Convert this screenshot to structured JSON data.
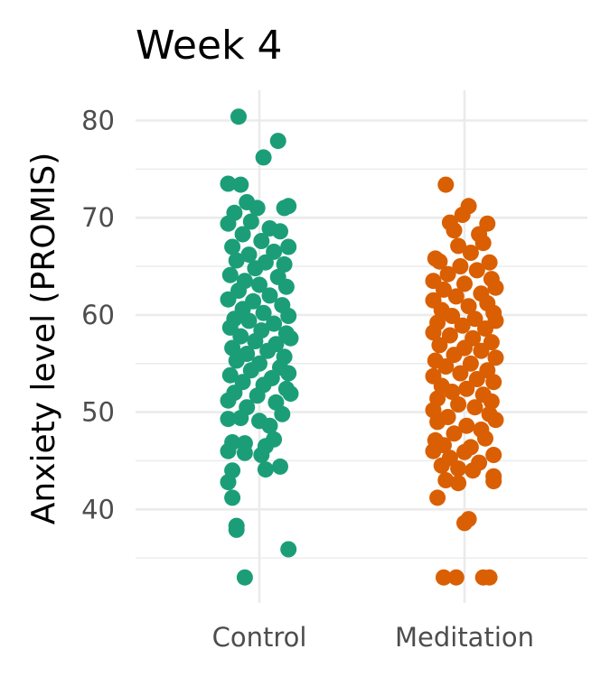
{
  "chart_data": {
    "type": "scatter",
    "subtype": "jittered strip plot",
    "title": "Week 4",
    "xlabel": "",
    "ylabel": "Anxiety level (PROMIS)",
    "categories": [
      "Control",
      "Meditation"
    ],
    "yticks": [
      40,
      50,
      60,
      70,
      80
    ],
    "ylim": [
      32.5,
      82
    ],
    "grid": true,
    "legend": "none",
    "series": [
      {
        "category": "Control",
        "color": "#1b9e77",
        "points": [
          {
            "x": -0.1,
            "y": 80.4
          },
          {
            "x": 0.09,
            "y": 77.9
          },
          {
            "x": 0.02,
            "y": 76.2
          },
          {
            "x": -0.15,
            "y": 73.5
          },
          {
            "x": -0.09,
            "y": 73.4
          },
          {
            "x": -0.06,
            "y": 71.6
          },
          {
            "x": 0.14,
            "y": 71.2
          },
          {
            "x": 0.12,
            "y": 71.0
          },
          {
            "x": -0.01,
            "y": 71.0
          },
          {
            "x": -0.12,
            "y": 70.5
          },
          {
            "x": -0.15,
            "y": 69.4
          },
          {
            "x": -0.04,
            "y": 69.6
          },
          {
            "x": 0.05,
            "y": 68.9
          },
          {
            "x": 0.1,
            "y": 68.6
          },
          {
            "x": -0.08,
            "y": 68.3
          },
          {
            "x": 0.01,
            "y": 67.6
          },
          {
            "x": -0.13,
            "y": 67.0
          },
          {
            "x": 0.14,
            "y": 67.0
          },
          {
            "x": 0.07,
            "y": 66.5
          },
          {
            "x": -0.05,
            "y": 66.2
          },
          {
            "x": -0.11,
            "y": 65.6
          },
          {
            "x": 0.03,
            "y": 65.4
          },
          {
            "x": 0.12,
            "y": 65.2
          },
          {
            "x": -0.02,
            "y": 64.8
          },
          {
            "x": -0.14,
            "y": 64.1
          },
          {
            "x": 0.09,
            "y": 63.9
          },
          {
            "x": -0.07,
            "y": 63.5
          },
          {
            "x": 0.0,
            "y": 63.1
          },
          {
            "x": 0.13,
            "y": 62.9
          },
          {
            "x": -0.1,
            "y": 62.5
          },
          {
            "x": 0.05,
            "y": 62.0
          },
          {
            "x": -0.15,
            "y": 61.6
          },
          {
            "x": -0.03,
            "y": 61.4
          },
          {
            "x": 0.11,
            "y": 61.0
          },
          {
            "x": -0.08,
            "y": 60.6
          },
          {
            "x": 0.02,
            "y": 60.2
          },
          {
            "x": 0.14,
            "y": 59.9
          },
          {
            "x": -0.12,
            "y": 59.6
          },
          {
            "x": -0.05,
            "y": 59.4
          },
          {
            "x": 0.07,
            "y": 59.1
          },
          {
            "x": -0.14,
            "y": 58.7
          },
          {
            "x": 0.01,
            "y": 58.4
          },
          {
            "x": 0.13,
            "y": 58.1
          },
          {
            "x": -0.09,
            "y": 57.8
          },
          {
            "x": 0.15,
            "y": 57.6
          },
          {
            "x": -0.02,
            "y": 57.3
          },
          {
            "x": 0.08,
            "y": 57.0
          },
          {
            "x": -0.13,
            "y": 56.6
          },
          {
            "x": 0.04,
            "y": 56.3
          },
          {
            "x": -0.06,
            "y": 56.0
          },
          {
            "x": 0.12,
            "y": 55.7
          },
          {
            "x": -0.11,
            "y": 55.3
          },
          {
            "x": 0.0,
            "y": 55.0
          },
          {
            "x": 0.1,
            "y": 54.6
          },
          {
            "x": -0.04,
            "y": 54.3
          },
          {
            "x": 0.14,
            "y": 54.0
          },
          {
            "x": -0.14,
            "y": 53.8
          },
          {
            "x": 0.06,
            "y": 53.5
          },
          {
            "x": -0.08,
            "y": 53.1
          },
          {
            "x": 0.02,
            "y": 52.8
          },
          {
            "x": 0.13,
            "y": 52.4
          },
          {
            "x": -0.12,
            "y": 52.0
          },
          {
            "x": -0.01,
            "y": 51.7
          },
          {
            "x": 0.15,
            "y": 51.9
          },
          {
            "x": -0.15,
            "y": 51.2
          },
          {
            "x": 0.08,
            "y": 51.0
          },
          {
            "x": -0.06,
            "y": 50.5
          },
          {
            "x": 0.11,
            "y": 49.8
          },
          {
            "x": -0.15,
            "y": 49.3
          },
          {
            "x": -0.09,
            "y": 49.4
          },
          {
            "x": 0.0,
            "y": 49.1
          },
          {
            "x": 0.05,
            "y": 48.6
          },
          {
            "x": 0.07,
            "y": 47.2
          },
          {
            "x": -0.13,
            "y": 46.9
          },
          {
            "x": -0.07,
            "y": 46.8
          },
          {
            "x": 0.03,
            "y": 46.5
          },
          {
            "x": -0.15,
            "y": 46.0
          },
          {
            "x": -0.07,
            "y": 45.8
          },
          {
            "x": 0.01,
            "y": 45.6
          },
          {
            "x": 0.1,
            "y": 44.4
          },
          {
            "x": 0.03,
            "y": 44.1
          },
          {
            "x": -0.13,
            "y": 44.0
          },
          {
            "x": -0.15,
            "y": 42.8
          },
          {
            "x": -0.13,
            "y": 41.2
          },
          {
            "x": -0.11,
            "y": 38.3
          },
          {
            "x": -0.11,
            "y": 37.9
          },
          {
            "x": 0.14,
            "y": 35.9
          },
          {
            "x": -0.07,
            "y": 33.0
          }
        ]
      },
      {
        "category": "Meditation",
        "color": "#d95f02",
        "points": [
          {
            "x": -0.09,
            "y": 73.4
          },
          {
            "x": 0.02,
            "y": 71.2
          },
          {
            "x": -0.01,
            "y": 70.3
          },
          {
            "x": -0.07,
            "y": 69.5
          },
          {
            "x": 0.11,
            "y": 69.4
          },
          {
            "x": -0.05,
            "y": 68.7
          },
          {
            "x": 0.07,
            "y": 68.3
          },
          {
            "x": 0.09,
            "y": 67.4
          },
          {
            "x": -0.03,
            "y": 67.1
          },
          {
            "x": 0.03,
            "y": 66.4
          },
          {
            "x": -0.14,
            "y": 65.8
          },
          {
            "x": -0.12,
            "y": 65.5
          },
          {
            "x": 0.12,
            "y": 65.4
          },
          {
            "x": -0.02,
            "y": 65.0
          },
          {
            "x": 0.06,
            "y": 64.6
          },
          {
            "x": -0.08,
            "y": 64.2
          },
          {
            "x": 0.13,
            "y": 63.7
          },
          {
            "x": -0.15,
            "y": 63.5
          },
          {
            "x": 0.0,
            "y": 63.2
          },
          {
            "x": 0.15,
            "y": 62.8
          },
          {
            "x": -0.1,
            "y": 62.6
          },
          {
            "x": 0.08,
            "y": 62.2
          },
          {
            "x": -0.04,
            "y": 61.9
          },
          {
            "x": -0.15,
            "y": 61.5
          },
          {
            "x": 0.11,
            "y": 61.2
          },
          {
            "x": 0.02,
            "y": 60.9
          },
          {
            "x": -0.11,
            "y": 60.5
          },
          {
            "x": 0.14,
            "y": 60.2
          },
          {
            "x": -0.06,
            "y": 59.9
          },
          {
            "x": 0.05,
            "y": 59.6
          },
          {
            "x": -0.13,
            "y": 59.2
          },
          {
            "x": 0.15,
            "y": 59.4
          },
          {
            "x": -0.01,
            "y": 58.9
          },
          {
            "x": 0.1,
            "y": 58.6
          },
          {
            "x": -0.15,
            "y": 58.2
          },
          {
            "x": -0.07,
            "y": 57.9
          },
          {
            "x": 0.04,
            "y": 57.6
          },
          {
            "x": 0.13,
            "y": 57.2
          },
          {
            "x": -0.12,
            "y": 56.9
          },
          {
            "x": 0.0,
            "y": 56.6
          },
          {
            "x": 0.08,
            "y": 56.3
          },
          {
            "x": -0.05,
            "y": 55.9
          },
          {
            "x": 0.15,
            "y": 55.6
          },
          {
            "x": -0.14,
            "y": 55.3
          },
          {
            "x": 0.03,
            "y": 55.0
          },
          {
            "x": -0.09,
            "y": 54.7
          },
          {
            "x": 0.11,
            "y": 54.3
          },
          {
            "x": -0.02,
            "y": 54.0
          },
          {
            "x": -0.15,
            "y": 53.7
          },
          {
            "x": 0.06,
            "y": 53.4
          },
          {
            "x": 0.14,
            "y": 53.1
          },
          {
            "x": -0.11,
            "y": 52.7
          },
          {
            "x": 0.01,
            "y": 52.4
          },
          {
            "x": -0.06,
            "y": 52.1
          },
          {
            "x": 0.09,
            "y": 51.8
          },
          {
            "x": -0.13,
            "y": 51.4
          },
          {
            "x": 0.13,
            "y": 51.1
          },
          {
            "x": -0.03,
            "y": 50.8
          },
          {
            "x": 0.05,
            "y": 50.5
          },
          {
            "x": -0.15,
            "y": 50.2
          },
          {
            "x": 0.12,
            "y": 49.8
          },
          {
            "x": -0.08,
            "y": 49.5
          },
          {
            "x": 0.15,
            "y": 49.2
          },
          {
            "x": -0.13,
            "y": 49.0
          },
          {
            "x": 0.01,
            "y": 48.6
          },
          {
            "x": 0.08,
            "y": 48.2
          },
          {
            "x": -0.05,
            "y": 47.8
          },
          {
            "x": 0.1,
            "y": 47.3
          },
          {
            "x": -0.14,
            "y": 47.1
          },
          {
            "x": -0.1,
            "y": 46.6
          },
          {
            "x": 0.03,
            "y": 46.4
          },
          {
            "x": -0.15,
            "y": 46.0
          },
          {
            "x": 0.0,
            "y": 45.9
          },
          {
            "x": 0.14,
            "y": 45.6
          },
          {
            "x": -0.07,
            "y": 45.3
          },
          {
            "x": 0.07,
            "y": 44.8
          },
          {
            "x": -0.11,
            "y": 44.5
          },
          {
            "x": -0.03,
            "y": 44.2
          },
          {
            "x": 0.04,
            "y": 44.0
          },
          {
            "x": 0.14,
            "y": 43.4
          },
          {
            "x": -0.09,
            "y": 43.0
          },
          {
            "x": 0.14,
            "y": 42.9
          },
          {
            "x": -0.03,
            "y": 42.7
          },
          {
            "x": -0.13,
            "y": 41.2
          },
          {
            "x": 0.02,
            "y": 39.0
          },
          {
            "x": 0.0,
            "y": 38.6
          },
          {
            "x": -0.1,
            "y": 33.0
          },
          {
            "x": -0.04,
            "y": 33.0
          },
          {
            "x": 0.09,
            "y": 33.0
          },
          {
            "x": 0.12,
            "y": 33.0
          }
        ]
      }
    ]
  }
}
